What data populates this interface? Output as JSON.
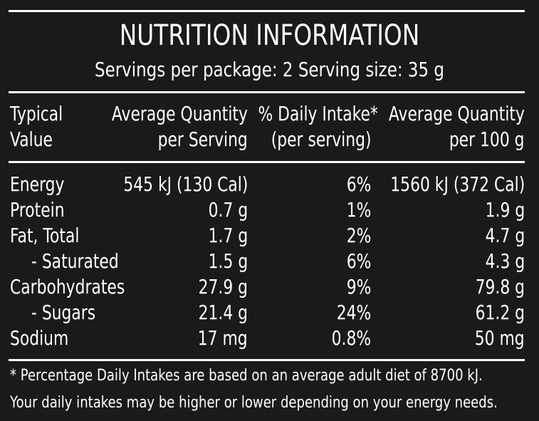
{
  "title": "NUTRITION INFORMATION",
  "subtitle": "Servings per package: 2 Serving size: 35 g",
  "headers": {
    "col1_line1": "Typical",
    "col1_line2": "Value",
    "col2_line1": "Average Quantity",
    "col2_line2": "per Serving",
    "col3_line1": "% Daily Intake*",
    "col3_line2": "(per serving)",
    "col4_line1": "Average Quantity",
    "col4_line2": "per 100 g"
  },
  "rows": [
    {
      "name": "Energy",
      "per_serving": "545 kJ (130 Cal)",
      "daily_intake": "6%",
      "per_100g": "1560 kJ (372 Cal)"
    },
    {
      "name": "Protein",
      "per_serving": "0.7 g",
      "daily_intake": "1%",
      "per_100g": "1.9 g"
    },
    {
      "name": "Fat, Total",
      "per_serving": "1.7 g",
      "daily_intake": "2%",
      "per_100g": "4.7 g"
    },
    {
      "name": "- Saturated",
      "per_serving": "1.5 g",
      "daily_intake": "6%",
      "per_100g": "4.3 g"
    },
    {
      "name": "Carbohydrates",
      "per_serving": "27.9 g",
      "daily_intake": "9%",
      "per_100g": "79.8 g"
    },
    {
      "name": "- Sugars",
      "per_serving": "21.4 g",
      "daily_intake": "24%",
      "per_100g": "61.2 g"
    },
    {
      "name": "Sodium",
      "per_serving": "17 mg",
      "daily_intake": "0.8%",
      "per_100g": "50 mg"
    }
  ],
  "footnote": {
    "line1": "* Percentage Daily Intakes are based on an average adult diet of 8700 kJ.",
    "line2": "Your daily intakes may be higher or lower depending on your energy needs."
  }
}
